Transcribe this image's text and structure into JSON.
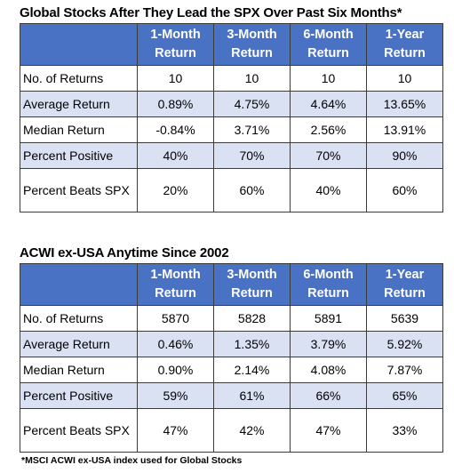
{
  "chart_data": [
    {
      "type": "table",
      "title": "Global Stocks After They Lead the SPX Over Past Six Months*",
      "columns": [
        "1-Month Return",
        "3-Month Return",
        "6-Month Return",
        "1-Year Return"
      ],
      "rows": [
        {
          "label": "No. of Returns",
          "values": [
            "10",
            "10",
            "10",
            "10"
          ]
        },
        {
          "label": "Average Return",
          "values": [
            "0.89%",
            "4.75%",
            "4.64%",
            "13.65%"
          ]
        },
        {
          "label": "Median Return",
          "values": [
            "-0.84%",
            "3.71%",
            "2.56%",
            "13.91%"
          ]
        },
        {
          "label": "Percent Positive",
          "values": [
            "40%",
            "70%",
            "70%",
            "90%"
          ]
        },
        {
          "label": "Percent Beats SPX",
          "values": [
            "20%",
            "60%",
            "40%",
            "60%"
          ]
        }
      ]
    },
    {
      "type": "table",
      "title": "ACWI ex-USA Anytime Since 2002",
      "columns": [
        "1-Month Return",
        "3-Month Return",
        "6-Month Return",
        "1-Year Return"
      ],
      "rows": [
        {
          "label": "No. of Returns",
          "values": [
            "5870",
            "5828",
            "5891",
            "5639"
          ]
        },
        {
          "label": "Average Return",
          "values": [
            "0.46%",
            "1.35%",
            "3.79%",
            "5.92%"
          ]
        },
        {
          "label": "Median Return",
          "values": [
            "0.90%",
            "2.14%",
            "4.08%",
            "7.87%"
          ]
        },
        {
          "label": "Percent Positive",
          "values": [
            "59%",
            "61%",
            "66%",
            "65%"
          ]
        },
        {
          "label": "Percent Beats SPX",
          "values": [
            "47%",
            "42%",
            "47%",
            "33%"
          ]
        }
      ]
    }
  ],
  "footnote": "*MSCI ACWI ex-USA index used for Global Stocks",
  "colors": {
    "header_bg": "#4a72c4",
    "header_text": "#ffffff",
    "alt_row_bg": "#d9e1f2",
    "border": "#3b3b3b"
  }
}
